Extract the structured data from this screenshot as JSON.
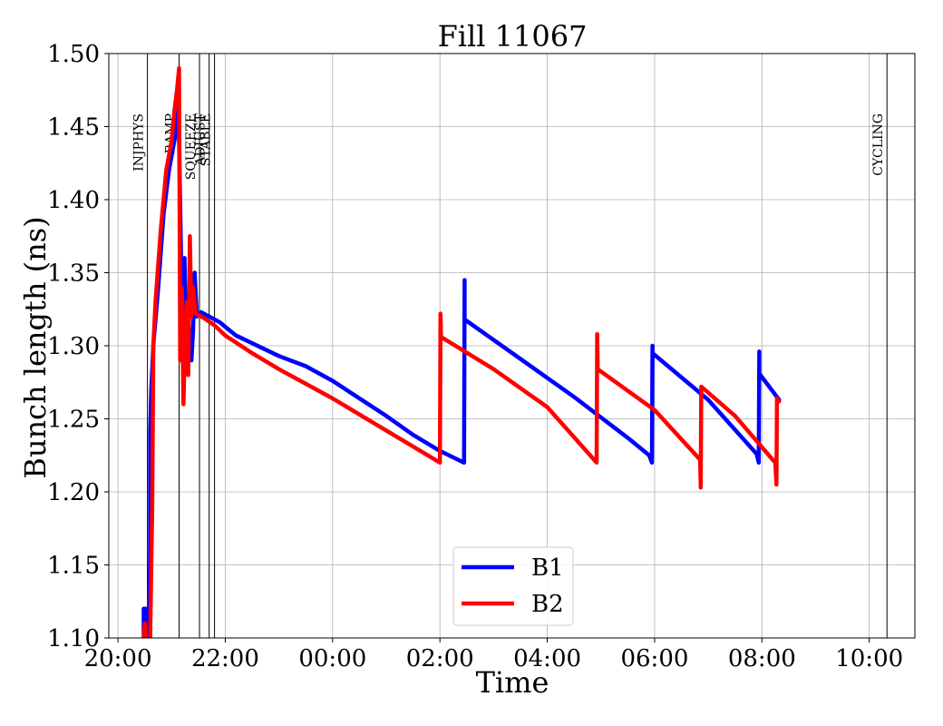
{
  "chart_data": {
    "type": "line",
    "title": "Fill 11067",
    "xlabel": "Time",
    "ylabel": "Bunch length (ns)",
    "xlim": [
      -0.17,
      14.85
    ],
    "ylim": [
      1.1,
      1.5
    ],
    "grid": true,
    "legend_position": "bottom-center",
    "x_ticks": [
      {
        "x": 0,
        "label": "20:00"
      },
      {
        "x": 2,
        "label": "22:00"
      },
      {
        "x": 4,
        "label": "00:00"
      },
      {
        "x": 6,
        "label": "02:00"
      },
      {
        "x": 8,
        "label": "04:00"
      },
      {
        "x": 10,
        "label": "06:00"
      },
      {
        "x": 12,
        "label": "08:00"
      },
      {
        "x": 14,
        "label": "10:00"
      }
    ],
    "y_ticks": [
      "1.10",
      "1.15",
      "1.20",
      "1.25",
      "1.30",
      "1.35",
      "1.40",
      "1.45",
      "1.50"
    ],
    "phases": [
      {
        "x": 0.55,
        "label": "INJPHYS"
      },
      {
        "x": 1.14,
        "label": "RAMP"
      },
      {
        "x": 1.52,
        "label": "SQUEEZE"
      },
      {
        "x": 1.7,
        "label": "ADJUST"
      },
      {
        "x": 1.8,
        "label": "STABLE"
      },
      {
        "x": 14.33,
        "label": "CYCLING"
      }
    ],
    "series": [
      {
        "name": "B1",
        "color": "#0000ff",
        "points": [
          [
            0.48,
            1.1
          ],
          [
            0.48,
            1.12
          ],
          [
            0.52,
            1.12
          ],
          [
            0.52,
            1.1
          ],
          [
            0.58,
            1.1
          ],
          [
            0.6,
            1.16
          ],
          [
            0.6,
            1.24
          ],
          [
            0.62,
            1.27
          ],
          [
            0.66,
            1.3
          ],
          [
            0.75,
            1.34
          ],
          [
            0.85,
            1.39
          ],
          [
            0.95,
            1.42
          ],
          [
            1.05,
            1.44
          ],
          [
            1.1,
            1.45
          ],
          [
            1.12,
            1.47
          ],
          [
            1.14,
            1.44
          ],
          [
            1.2,
            1.31
          ],
          [
            1.24,
            1.36
          ],
          [
            1.27,
            1.3
          ],
          [
            1.3,
            1.32
          ],
          [
            1.33,
            1.31
          ],
          [
            1.37,
            1.29
          ],
          [
            1.4,
            1.31
          ],
          [
            1.43,
            1.35
          ],
          [
            1.47,
            1.32
          ],
          [
            1.55,
            1.323
          ],
          [
            1.7,
            1.32
          ],
          [
            1.8,
            1.318
          ],
          [
            1.9,
            1.316
          ],
          [
            2.0,
            1.313
          ],
          [
            2.2,
            1.307
          ],
          [
            3.0,
            1.293
          ],
          [
            3.5,
            1.286
          ],
          [
            4.0,
            1.276
          ],
          [
            4.5,
            1.264
          ],
          [
            5.0,
            1.252
          ],
          [
            5.5,
            1.239
          ],
          [
            6.0,
            1.228
          ],
          [
            6.45,
            1.22
          ],
          [
            6.46,
            1.345
          ],
          [
            6.46,
            1.318
          ],
          [
            7.5,
            1.291
          ],
          [
            8.5,
            1.265
          ],
          [
            9.5,
            1.237
          ],
          [
            9.9,
            1.225
          ],
          [
            9.95,
            1.22
          ],
          [
            9.96,
            1.3
          ],
          [
            9.96,
            1.295
          ],
          [
            11.0,
            1.263
          ],
          [
            11.9,
            1.226
          ],
          [
            11.94,
            1.22
          ],
          [
            11.95,
            1.296
          ],
          [
            11.95,
            1.281
          ],
          [
            12.32,
            1.263
          ]
        ]
      },
      {
        "name": "B2",
        "color": "#ff0000",
        "points": [
          [
            0.48,
            1.1
          ],
          [
            0.5,
            1.11
          ],
          [
            0.52,
            1.1
          ],
          [
            0.58,
            1.09
          ],
          [
            0.6,
            1.1
          ],
          [
            0.64,
            1.19
          ],
          [
            0.66,
            1.3
          ],
          [
            0.7,
            1.33
          ],
          [
            0.8,
            1.38
          ],
          [
            0.9,
            1.42
          ],
          [
            1.0,
            1.44
          ],
          [
            1.05,
            1.46
          ],
          [
            1.1,
            1.475
          ],
          [
            1.14,
            1.49
          ],
          [
            1.16,
            1.29
          ],
          [
            1.19,
            1.34
          ],
          [
            1.22,
            1.26
          ],
          [
            1.25,
            1.3
          ],
          [
            1.28,
            1.33
          ],
          [
            1.31,
            1.28
          ],
          [
            1.34,
            1.375
          ],
          [
            1.37,
            1.32
          ],
          [
            1.4,
            1.34
          ],
          [
            1.45,
            1.322
          ],
          [
            1.6,
            1.319
          ],
          [
            1.8,
            1.314
          ],
          [
            2.0,
            1.307
          ],
          [
            2.5,
            1.295
          ],
          [
            3.0,
            1.284
          ],
          [
            3.5,
            1.274
          ],
          [
            4.0,
            1.264
          ],
          [
            5.0,
            1.242
          ],
          [
            5.5,
            1.231
          ],
          [
            6.0,
            1.22
          ],
          [
            6.01,
            1.322
          ],
          [
            6.02,
            1.306
          ],
          [
            7.0,
            1.284
          ],
          [
            8.0,
            1.258
          ],
          [
            8.92,
            1.22
          ],
          [
            8.93,
            1.308
          ],
          [
            8.94,
            1.284
          ],
          [
            10.0,
            1.256
          ],
          [
            10.85,
            1.222
          ],
          [
            10.86,
            1.203
          ],
          [
            10.87,
            1.272
          ],
          [
            11.5,
            1.252
          ],
          [
            12.2,
            1.222
          ],
          [
            12.25,
            1.22
          ],
          [
            12.27,
            1.205
          ],
          [
            12.28,
            1.264
          ],
          [
            12.32,
            1.262
          ]
        ]
      }
    ]
  }
}
